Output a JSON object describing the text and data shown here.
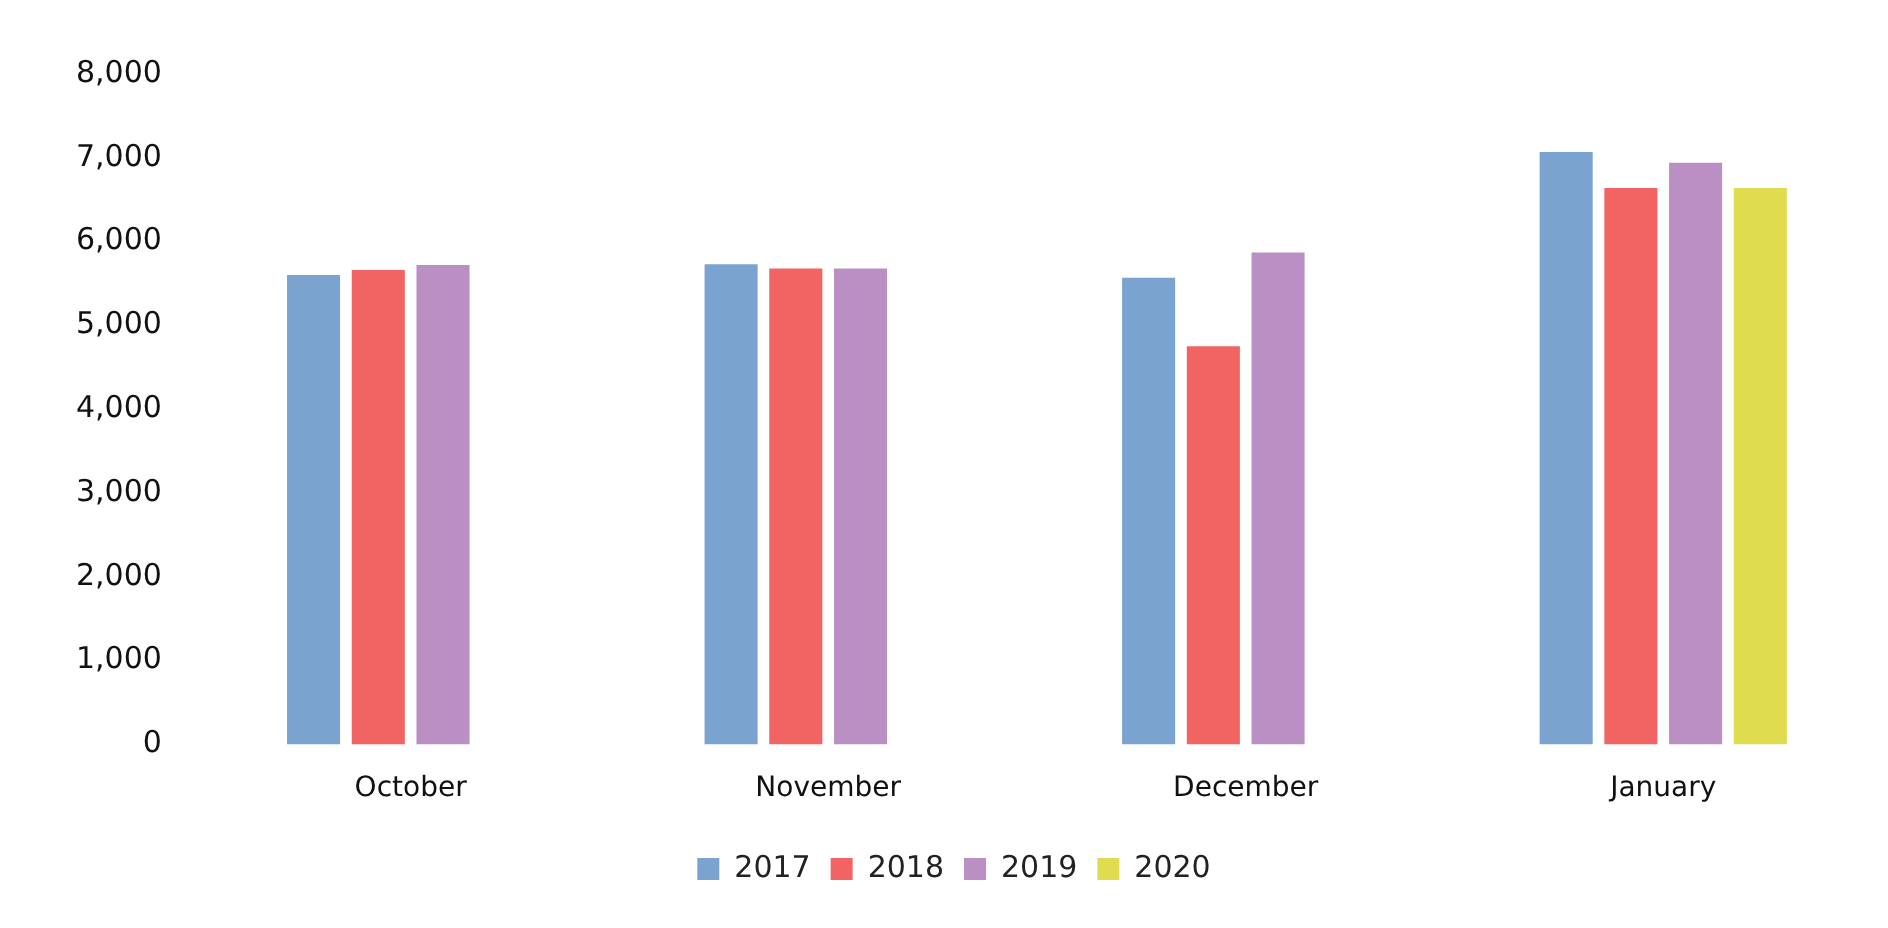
{
  "chart_data": {
    "type": "bar",
    "categories": [
      "October",
      "November",
      "December",
      "January"
    ],
    "series": [
      {
        "name": "2017",
        "color": "#7ba3d0",
        "values": [
          5600,
          5730,
          5570,
          7070
        ]
      },
      {
        "name": "2018",
        "color": "#f26464",
        "values": [
          5660,
          5680,
          4750,
          6640
        ]
      },
      {
        "name": "2019",
        "color": "#b98fc4",
        "values": [
          5720,
          5680,
          5870,
          6940
        ]
      },
      {
        "name": "2020",
        "color": "#e0dc50",
        "values": [
          null,
          null,
          null,
          6640
        ]
      }
    ],
    "ylim": [
      0,
      8000
    ],
    "yticks": [
      0,
      {
        "value": 1000,
        "label": "1,000"
      },
      {
        "value": 2000,
        "label": "2,000"
      },
      {
        "value": 3000,
        "label": "3,000"
      },
      {
        "value": 4000,
        "label": "4,000"
      },
      {
        "value": 5000,
        "label": "5,000"
      },
      {
        "value": 6000,
        "label": "6,000"
      },
      {
        "value": 7000,
        "label": "7,000"
      },
      {
        "value": 8000,
        "label": "8,000"
      }
    ],
    "grid": false,
    "legend": "bottom"
  }
}
